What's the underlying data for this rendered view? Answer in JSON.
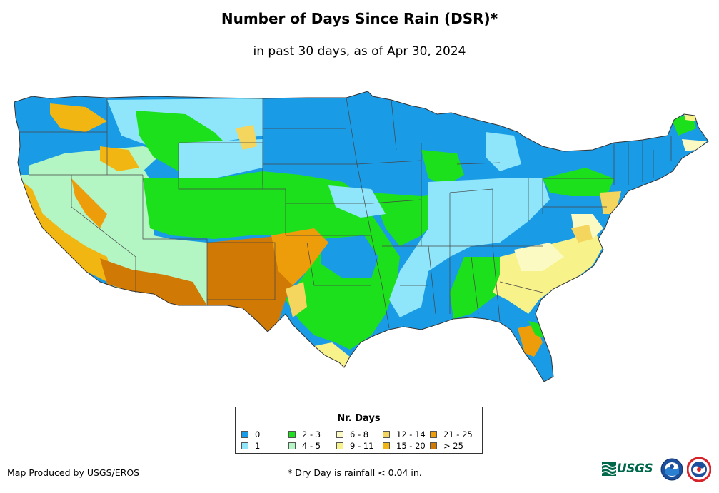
{
  "header": {
    "title": "Number of Days Since Rain (DSR)*",
    "subtitle": "in past 30 days, as of Apr 30, 2024"
  },
  "legend": {
    "title": "Nr. Days",
    "items": [
      {
        "label": "0",
        "color": "#1a9be6"
      },
      {
        "label": "1",
        "color": "#8fe6fa"
      },
      {
        "label": "2 - 3",
        "color": "#1de01d"
      },
      {
        "label": "4 - 5",
        "color": "#b4f5c4"
      },
      {
        "label": "6 - 8",
        "color": "#fbfac3"
      },
      {
        "label": "9 - 11",
        "color": "#f7f28a"
      },
      {
        "label": "12 - 14",
        "color": "#f4d55e"
      },
      {
        "label": "15 - 20",
        "color": "#f2b613"
      },
      {
        "label": "21 - 25",
        "color": "#ee9d0a"
      },
      {
        "label": "> 25",
        "color": "#d07a05"
      }
    ]
  },
  "footer": {
    "credit": "Map Produced by USGS/EROS",
    "footnote": "* Dry Day is rainfall < 0.04 in.",
    "logos": {
      "usgs": "USGS",
      "noaa": "NOAA",
      "nws": "National Weather Service"
    }
  }
}
